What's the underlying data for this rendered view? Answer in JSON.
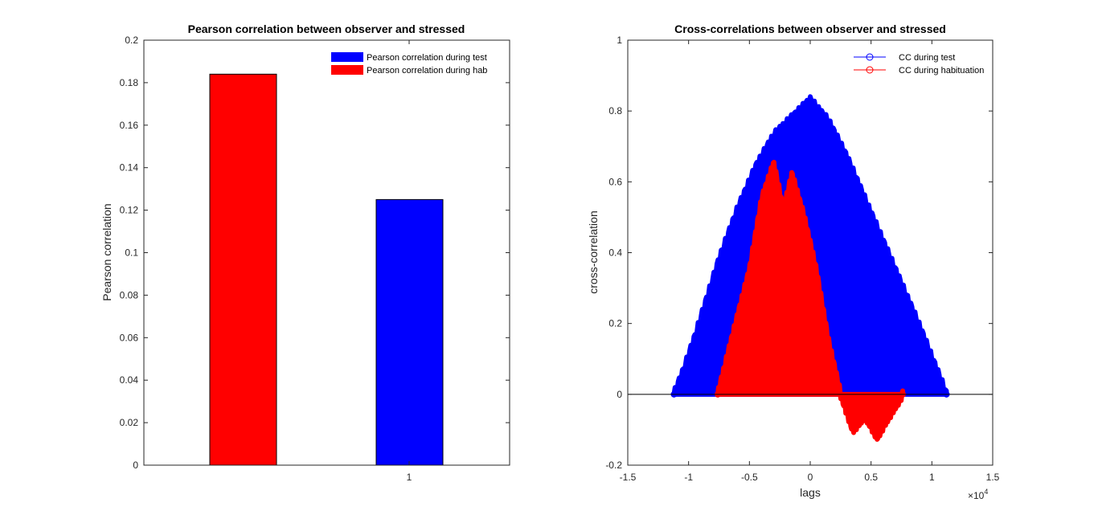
{
  "chart_data": [
    {
      "type": "bar",
      "title": "Pearson correlation between observer and stressed",
      "xlabel": "",
      "ylabel": "Pearson correlation",
      "categories": [
        "1"
      ],
      "ylim": [
        0,
        0.2
      ],
      "yticks": [
        "0",
        "0.02",
        "0.04",
        "0.06",
        "0.08",
        "0.1",
        "0.12",
        "0.14",
        "0.16",
        "0.18",
        "0.2"
      ],
      "xticks": [
        "1"
      ],
      "series": [
        {
          "name": "Pearson correlation during test",
          "values": [
            0.125
          ],
          "color": "#0000ff"
        },
        {
          "name": "Pearson correlation during hab",
          "values": [
            0.184
          ],
          "color": "#ff0000"
        }
      ],
      "legend": "top-right",
      "grid": false
    },
    {
      "type": "line",
      "title": "Cross-correlations between observer and stressed",
      "xlabel": "lags",
      "ylabel": "cross-correlation",
      "xlim": [
        -15000,
        15000
      ],
      "ylim": [
        -0.2,
        1
      ],
      "xticks": [
        "-1.5",
        "-1",
        "-0.5",
        "0",
        "0.5",
        "1",
        "1.5"
      ],
      "yticks": [
        "-0.2",
        "0",
        "0.2",
        "0.4",
        "0.6",
        "0.8",
        "1"
      ],
      "x_exponent_label": "×10",
      "x_exponent": "4",
      "series": [
        {
          "name": "CC during test",
          "color": "#0000ff",
          "marker": "o",
          "envelope": [
            [
              -11200,
              0
            ],
            [
              -10500,
              0.06
            ],
            [
              -9500,
              0.16
            ],
            [
              -8500,
              0.27
            ],
            [
              -7500,
              0.38
            ],
            [
              -6000,
              0.52
            ],
            [
              -4500,
              0.64
            ],
            [
              -3000,
              0.73
            ],
            [
              -1500,
              0.78
            ],
            [
              0,
              0.83
            ],
            [
              1500,
              0.77
            ],
            [
              3000,
              0.67
            ],
            [
              4500,
              0.55
            ],
            [
              6000,
              0.43
            ],
            [
              7500,
              0.31
            ],
            [
              9000,
              0.19
            ],
            [
              10500,
              0.06
            ],
            [
              11200,
              0
            ]
          ]
        },
        {
          "name": "CC during habituation",
          "color": "#ff0000",
          "marker": "o",
          "envelope": [
            [
              -7600,
              0
            ],
            [
              -6500,
              0.15
            ],
            [
              -5000,
              0.35
            ],
            [
              -4000,
              0.55
            ],
            [
              -3000,
              0.65
            ],
            [
              -2200,
              0.52
            ],
            [
              -1500,
              0.62
            ],
            [
              -500,
              0.5
            ],
            [
              500,
              0.35
            ],
            [
              1500,
              0.15
            ],
            [
              2500,
              0
            ],
            [
              3500,
              -0.1
            ],
            [
              4500,
              -0.06
            ],
            [
              5500,
              -0.12
            ],
            [
              6500,
              -0.06
            ],
            [
              7600,
              0
            ]
          ]
        }
      ],
      "legend": "top-right",
      "grid": false
    }
  ]
}
